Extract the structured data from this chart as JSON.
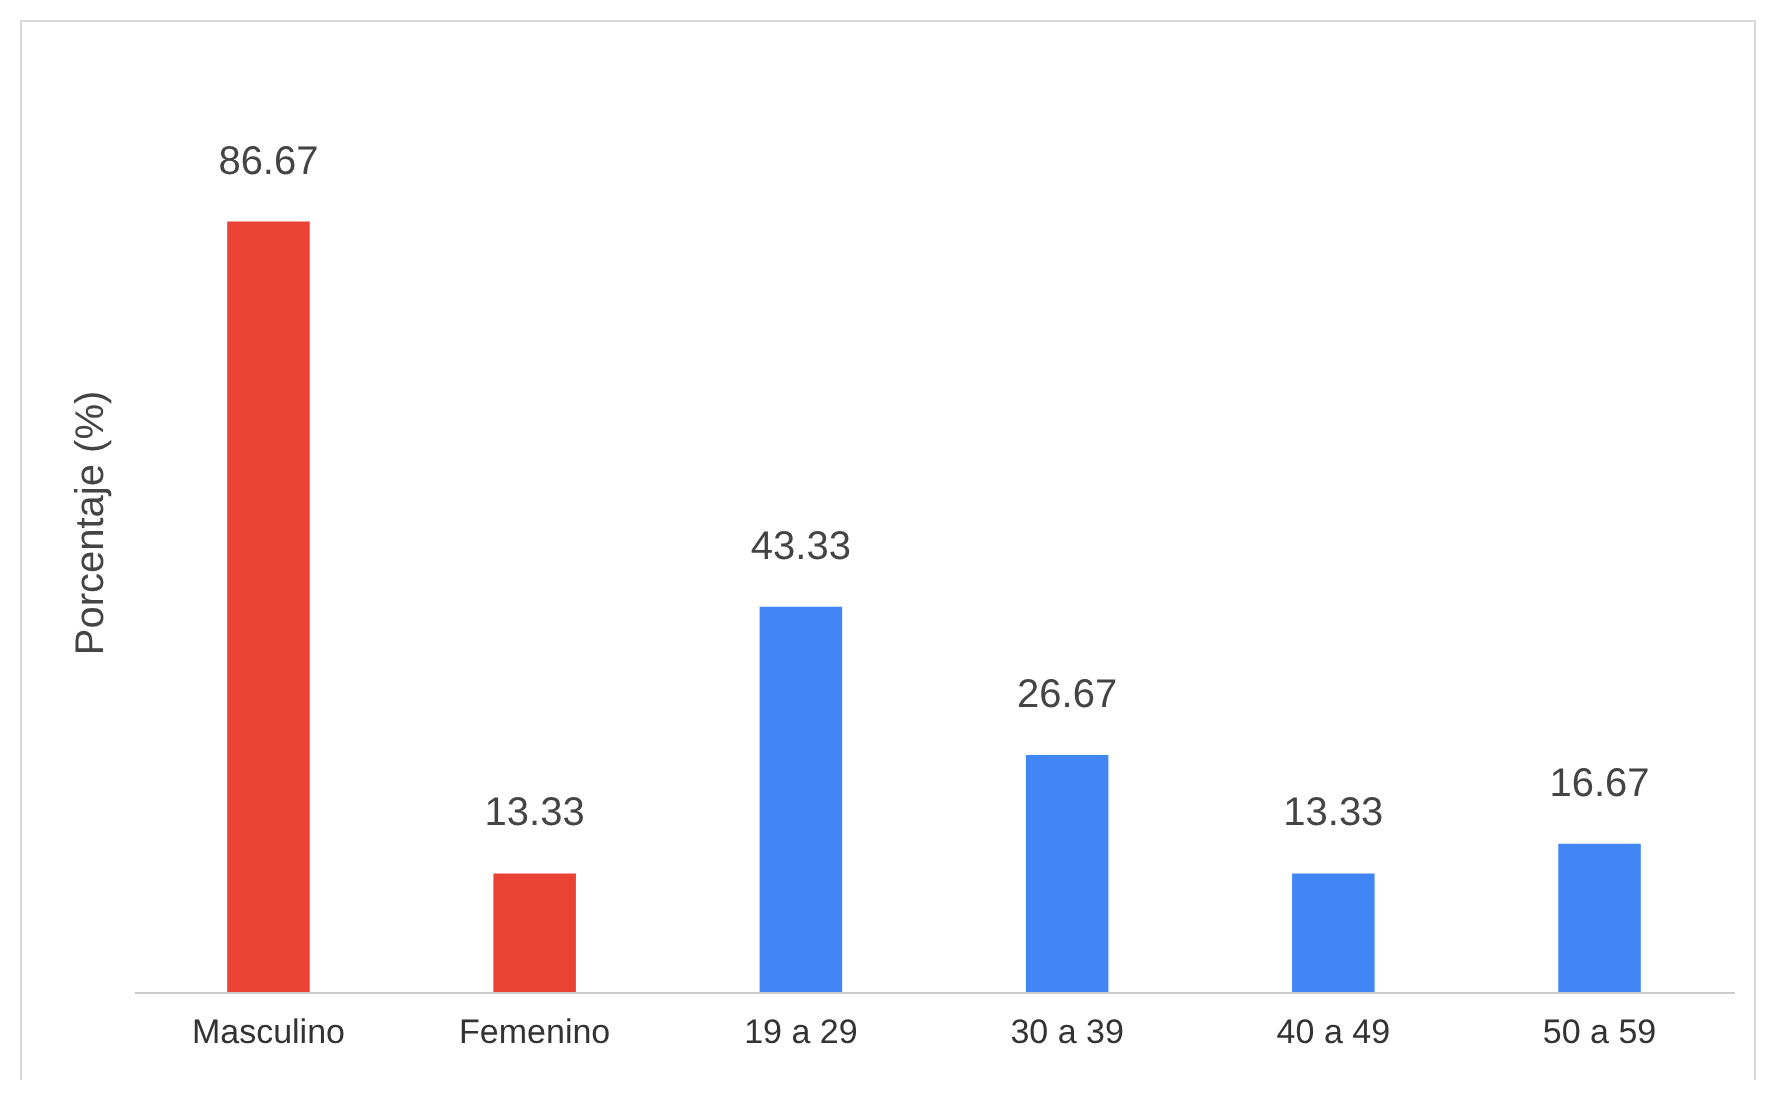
{
  "chart_data": {
    "type": "bar",
    "ylabel": "Porcentaje (%)",
    "categories": [
      "Masculino",
      "Femenino",
      "19 a 29",
      "30 a 39",
      "40 a 49",
      "50 a 59"
    ],
    "values": [
      86.67,
      13.33,
      43.33,
      26.67,
      13.33,
      16.67
    ],
    "colors": [
      "#ea4335",
      "#ea4335",
      "#4285f4",
      "#4285f4",
      "#4285f4",
      "#4285f4"
    ],
    "data_labels": true
  }
}
